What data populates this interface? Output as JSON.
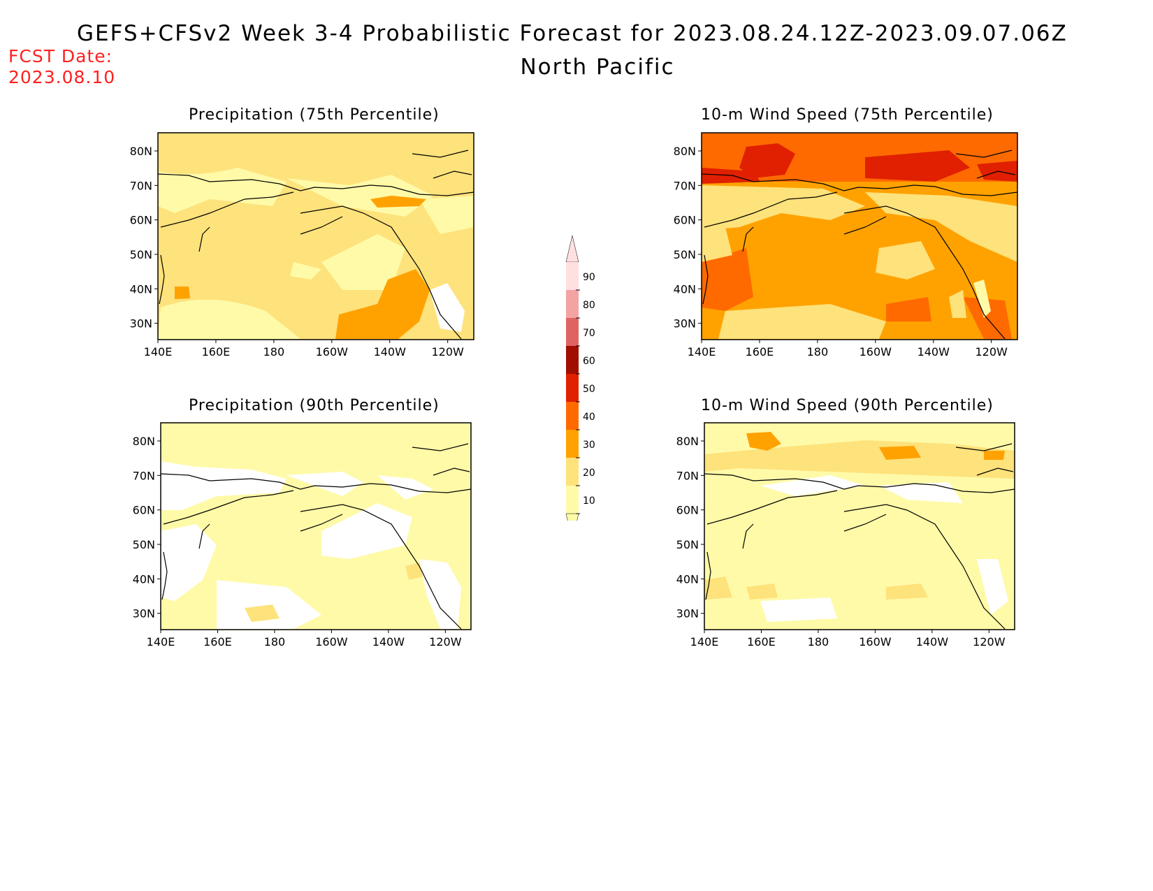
{
  "title": "GEFS+CFSv2 Week 3-4 Probabilistic Forecast for 2023.08.24.12Z-2023.09.07.06Z",
  "subtitle": "North Pacific",
  "fcst_label": "FCST Date:",
  "fcst_date": "2023.08.10",
  "panels": [
    {
      "title": "Precipitation (75th Percentile)"
    },
    {
      "title": "10-m Wind Speed (75th Percentile)"
    },
    {
      "title": "Precipitation (90th Percentile)"
    },
    {
      "title": "10-m Wind Speed (90th Percentile)"
    }
  ],
  "lon_labels": [
    "140E",
    "160E",
    "180",
    "160W",
    "140W",
    "120W"
  ],
  "lat_labels": [
    "80N",
    "70N",
    "60N",
    "50N",
    "40N",
    "30N"
  ],
  "legend": {
    "labels": [
      "90",
      "80",
      "70",
      "60",
      "50",
      "40",
      "30",
      "20",
      "10"
    ],
    "colors": [
      "#ffe0e0",
      "#f4a3a3",
      "#de6464",
      "#a00e00",
      "#e02000",
      "#ff6a00",
      "#ffa200",
      "#fee27b",
      "#fffaa8"
    ]
  }
}
